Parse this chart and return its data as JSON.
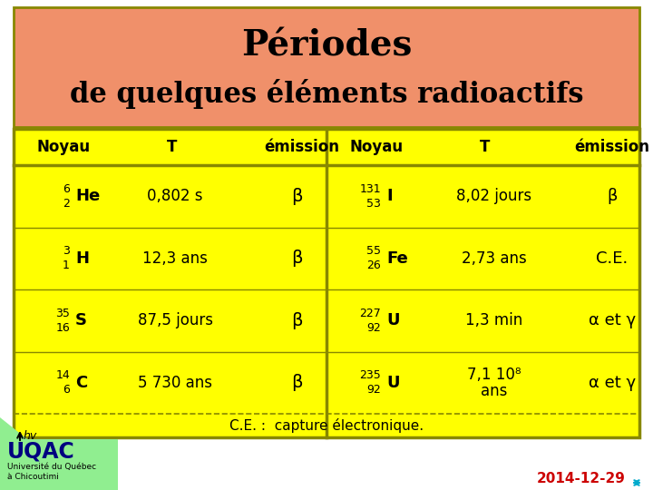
{
  "title_line1": "Périodes",
  "title_line2": "de quelques éléments radioactifs",
  "title_bg": "#F0906A",
  "table_bg": "#FFFF00",
  "outer_bg": "#FFFFFF",
  "border_color": "#888800",
  "text_color": "#000000",
  "date_color": "#CC0000",
  "date_text": "2014-12-29",
  "rows_left": [
    {
      "sup": "6",
      "sub": "2",
      "sym": "He",
      "T": "0,802 s",
      "em": "β"
    },
    {
      "sup": "3",
      "sub": "1",
      "sym": "H",
      "T": "12,3 ans",
      "em": "β"
    },
    {
      "sup": "35",
      "sub": "16",
      "sym": "S",
      "T": "87,5 jours",
      "em": "β"
    },
    {
      "sup": "14",
      "sub": "6",
      "sym": "C",
      "T": "5 730 ans",
      "em": "β"
    }
  ],
  "rows_right": [
    {
      "sup": "131",
      "sub": "53",
      "sym": "I",
      "T": "8,02 jours",
      "em": "β",
      "T2": null
    },
    {
      "sup": "55",
      "sub": "26",
      "sym": "Fe",
      "T": "2,73 ans",
      "em": "C.E.",
      "T2": null
    },
    {
      "sup": "227",
      "sub": "92",
      "sym": "U",
      "T": "1,3 min",
      "em": "α et γ",
      "T2": null
    },
    {
      "sup": "235",
      "sub": "92",
      "sym": "U",
      "T": "7,1 10⁸",
      "em": "α et γ",
      "T2": "ans"
    }
  ],
  "footer_text": "C.E. :  capture électronique.",
  "green_bg": "#90EE90",
  "uqac_color": "#000080",
  "figsize": [
    7.2,
    5.4
  ],
  "dpi": 100
}
